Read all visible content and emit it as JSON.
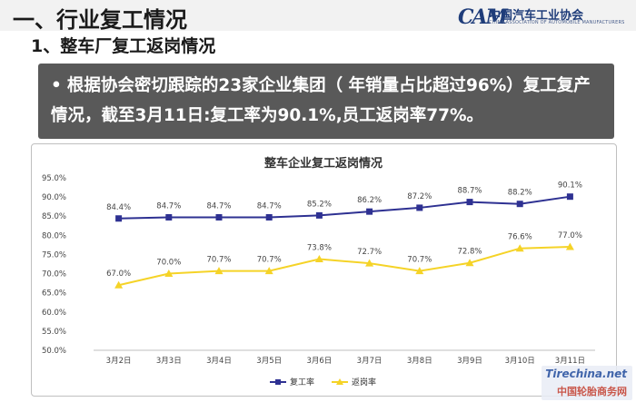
{
  "header": {
    "section_title": "一、行业复工情况",
    "logo_mark": "CAM",
    "logo_cn": "中国汽车工业协会",
    "logo_en": "CHINA ASSOCIATION OF AUTOMOBILE MANUFACTURERS"
  },
  "subsection_title": "1、整车厂复工返岗情况",
  "banner": {
    "bullet": "•",
    "text": "根据协会密切跟踪的23家企业集团（ 年销量占比超过96%）复工复产情况，截至3月11日:复工率为90.1%,员工返岗率77%。"
  },
  "colors": {
    "series1": "#2e3192",
    "series2": "#f5d327",
    "banner_bg": "#595959"
  },
  "chart_data": {
    "type": "line",
    "title": "整车企业复工返岗情况",
    "categories": [
      "3月2日",
      "3月3日",
      "3月4日",
      "3月5日",
      "3月6日",
      "3月7日",
      "3月8日",
      "3月9日",
      "3月10日",
      "3月11日"
    ],
    "series": [
      {
        "name": "复工率",
        "values": [
          84.4,
          84.7,
          84.7,
          84.7,
          85.2,
          86.2,
          87.2,
          88.7,
          88.2,
          90.1
        ],
        "labels": [
          "84.4%",
          "84.7%",
          "84.7%",
          "84.7%",
          "85.2%",
          "86.2%",
          "87.2%",
          "88.7%",
          "88.2%",
          "90.1%"
        ]
      },
      {
        "name": "返岗率",
        "values": [
          67.0,
          70.0,
          70.7,
          70.7,
          73.8,
          72.7,
          70.7,
          72.8,
          76.6,
          77.0
        ],
        "labels": [
          "67.0%",
          "70.0%",
          "70.7%",
          "70.7%",
          "73.8%",
          "72.7%",
          "70.7%",
          "72.8%",
          "76.6%",
          "77.0%"
        ]
      }
    ],
    "ylim": [
      50,
      95
    ],
    "yticks": [
      "50.0%",
      "55.0%",
      "60.0%",
      "65.0%",
      "70.0%",
      "75.0%",
      "80.0%",
      "85.0%",
      "90.0%",
      "95.0%"
    ],
    "ytick_values": [
      50,
      55,
      60,
      65,
      70,
      75,
      80,
      85,
      90,
      95
    ],
    "grid": false,
    "legend_position": "bottom"
  },
  "watermark": {
    "line1": "Tirechina.net",
    "line2": "中国轮胎商务网"
  }
}
